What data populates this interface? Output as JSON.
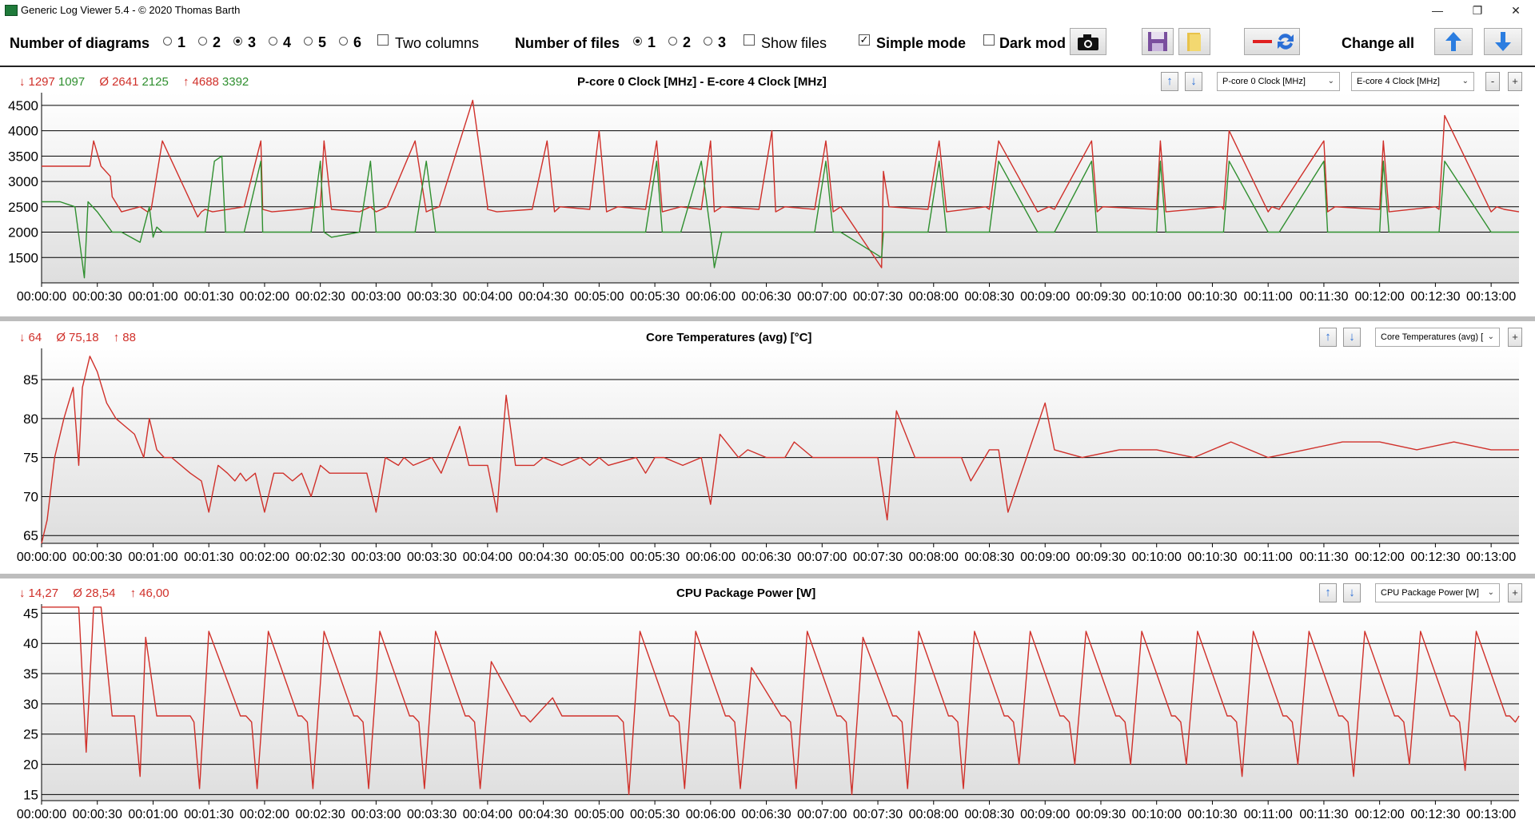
{
  "window": {
    "title": "Generic Log Viewer 5.4 - © 2020 Thomas Barth",
    "minimize": "—",
    "restore": "❐",
    "close": "✕"
  },
  "toolbar": {
    "num_diagrams_label": "Number of diagrams",
    "diagram_options": [
      "1",
      "2",
      "3",
      "4",
      "5",
      "6"
    ],
    "diagram_selected": "3",
    "two_columns": "Two columns",
    "num_files_label": "Number of files",
    "file_options": [
      "1",
      "2",
      "3"
    ],
    "file_selected": "1",
    "show_files": "Show files",
    "simple_mode": "Simple mode",
    "simple_mode_checked": true,
    "dark_mode": "Dark mod",
    "change_all": "Change all",
    "icons": [
      "camera-icon",
      "save-icon",
      "folder-icon",
      "remove-swap-icon",
      "up-arrow-icon",
      "down-arrow-icon"
    ]
  },
  "colors": {
    "red": "#d0302a",
    "green": "#2f8f2f",
    "grid": "#000000"
  },
  "chart_data": [
    {
      "type": "line",
      "title": "P-core 0 Clock [MHz]  -  E-core 4 Clock [MHz]",
      "stats": {
        "min": [
          "1297",
          "1097"
        ],
        "avg": [
          "2641",
          "2125"
        ],
        "max": [
          "4688",
          "3392"
        ]
      },
      "selectors": [
        "P-core 0 Clock [MHz]",
        "E-core 4 Clock [MHz]"
      ],
      "ylim": [
        1000,
        4750
      ],
      "yticks": [
        1500,
        2000,
        2500,
        3000,
        3500,
        4000,
        4500
      ],
      "xticks": [
        "00:00:00",
        "00:00:30",
        "00:01:00",
        "00:01:30",
        "00:02:00",
        "00:02:30",
        "00:03:00",
        "00:03:30",
        "00:04:00",
        "00:04:30",
        "00:05:00",
        "00:05:30",
        "00:06:00",
        "00:06:30",
        "00:07:00",
        "00:07:30",
        "00:08:00",
        "00:08:30",
        "00:09:00",
        "00:09:30",
        "00:10:00",
        "00:10:30",
        "00:11:00",
        "00:11:30",
        "00:12:00",
        "00:12:30",
        "00:13:00"
      ],
      "xmax": 795,
      "series": [
        {
          "color": "#d0302a",
          "x": [
            0,
            26,
            28,
            32,
            37,
            38,
            43,
            53,
            57,
            59,
            65,
            84,
            86,
            88,
            92,
            109,
            118,
            119,
            124,
            139,
            150,
            152,
            156,
            171,
            177,
            180,
            186,
            201,
            207,
            210,
            214,
            232,
            240,
            240,
            245,
            264,
            272,
            276,
            279,
            295,
            300,
            304,
            310,
            325,
            331,
            334,
            344,
            355,
            360,
            362,
            366,
            386,
            393,
            395,
            400,
            416,
            422,
            426,
            430,
            452,
            453,
            456,
            477,
            483,
            487,
            508,
            510,
            515,
            536,
            542,
            545,
            565,
            568,
            571,
            600,
            602,
            605,
            635,
            636,
            639,
            660,
            662,
            666,
            690,
            692,
            696,
            720,
            722,
            725,
            750,
            752,
            755,
            780,
            783,
            787,
            795
          ],
          "y": [
            3300,
            3300,
            3800,
            3300,
            3100,
            2700,
            2400,
            2500,
            2400,
            2450,
            3800,
            2300,
            2400,
            2450,
            2400,
            2500,
            3800,
            2450,
            2400,
            2450,
            2500,
            3800,
            2450,
            2400,
            2500,
            2400,
            2500,
            3800,
            2400,
            2450,
            2500,
            4600,
            2500,
            2450,
            2400,
            2450,
            3800,
            2400,
            2500,
            2450,
            4000,
            2400,
            2500,
            2450,
            3800,
            2400,
            2500,
            2450,
            3800,
            2400,
            2500,
            2450,
            4000,
            2400,
            2500,
            2450,
            3800,
            2400,
            2500,
            1300,
            3200,
            2500,
            2450,
            3800,
            2400,
            2500,
            2450,
            3800,
            2400,
            2500,
            2450,
            3800,
            2400,
            2500,
            2450,
            3800,
            2400,
            2500,
            2450,
            4000,
            2400,
            2500,
            2450,
            3800,
            2400,
            2500,
            2450,
            3800,
            2400,
            2500,
            2450,
            4300,
            2400,
            2500,
            2450,
            2400
          ]
        },
        {
          "color": "#2f8f2f",
          "x": [
            0,
            10,
            18,
            23,
            25,
            30,
            38,
            43,
            53,
            58,
            60,
            62,
            65,
            84,
            88,
            93,
            97,
            99,
            109,
            118,
            119,
            124,
            139,
            145,
            150,
            152,
            156,
            171,
            177,
            180,
            186,
            201,
            207,
            212,
            232,
            240,
            244,
            264,
            269,
            276,
            279,
            295,
            300,
            304,
            310,
            325,
            331,
            334,
            344,
            355,
            360,
            362,
            366,
            386,
            393,
            395,
            400,
            416,
            422,
            426,
            430,
            452,
            453,
            456,
            477,
            483,
            487,
            508,
            510,
            515,
            536,
            542,
            545,
            565,
            568,
            571,
            600,
            602,
            605,
            635,
            636,
            639,
            660,
            662,
            666,
            690,
            692,
            696,
            720,
            722,
            725,
            750,
            752,
            755,
            780,
            783,
            787,
            795
          ],
          "y": [
            2600,
            2600,
            2500,
            1100,
            2600,
            2400,
            2000,
            2000,
            1800,
            2500,
            1900,
            2100,
            2000,
            2000,
            2000,
            3400,
            3500,
            2000,
            2000,
            3400,
            2000,
            2000,
            2000,
            2000,
            3400,
            2000,
            1900,
            2000,
            3400,
            2000,
            2000,
            2000,
            3400,
            2000,
            2000,
            2000,
            2000,
            2000,
            2000,
            2000,
            2000,
            2000,
            2000,
            2000,
            2000,
            2000,
            3400,
            2000,
            2000,
            3400,
            2000,
            1300,
            2000,
            2000,
            2000,
            2000,
            2000,
            2000,
            3400,
            2000,
            2000,
            1500,
            2000,
            2000,
            2000,
            3400,
            2000,
            2000,
            2000,
            3400,
            2000,
            2000,
            2000,
            3400,
            2000,
            2000,
            2000,
            3400,
            2000,
            2000,
            2000,
            3400,
            2000,
            2000,
            2000,
            3400,
            2000,
            2000,
            2000,
            3400,
            2000,
            2000,
            2000,
            3400,
            2000,
            2000,
            2000,
            2000
          ]
        }
      ]
    },
    {
      "type": "line",
      "title": "Core Temperatures (avg) [°C]",
      "stats": {
        "min": [
          "64"
        ],
        "avg": [
          "75,18"
        ],
        "max": [
          "88"
        ]
      },
      "selectors": [
        "Core Temperatures (avg) ["
      ],
      "ylim": [
        64,
        89
      ],
      "yticks": [
        65,
        70,
        75,
        80,
        85
      ],
      "xticks": [
        "00:00:00",
        "00:00:30",
        "00:01:00",
        "00:01:30",
        "00:02:00",
        "00:02:30",
        "00:03:00",
        "00:03:30",
        "00:04:00",
        "00:04:30",
        "00:05:00",
        "00:05:30",
        "00:06:00",
        "00:06:30",
        "00:07:00",
        "00:07:30",
        "00:08:00",
        "00:08:30",
        "00:09:00",
        "00:09:30",
        "00:10:00",
        "00:10:30",
        "00:11:00",
        "00:11:30",
        "00:12:00",
        "00:12:30",
        "00:13:00"
      ],
      "xmax": 795,
      "series": [
        {
          "color": "#d0302a",
          "x": [
            0,
            3,
            7,
            12,
            17,
            20,
            22,
            26,
            30,
            35,
            40,
            45,
            50,
            55,
            58,
            62,
            66,
            70,
            80,
            86,
            90,
            95,
            100,
            104,
            107,
            110,
            115,
            120,
            125,
            130,
            135,
            140,
            145,
            150,
            155,
            160,
            170,
            175,
            180,
            185,
            192,
            195,
            200,
            210,
            215,
            225,
            230,
            235,
            240,
            245,
            250,
            255,
            265,
            270,
            280,
            290,
            295,
            300,
            305,
            320,
            325,
            330,
            335,
            345,
            355,
            360,
            365,
            375,
            380,
            390,
            400,
            405,
            415,
            420,
            425,
            450,
            455,
            460,
            470,
            490,
            495,
            500,
            510,
            515,
            520,
            540,
            545,
            560,
            580,
            600,
            620,
            640,
            660,
            680,
            700,
            720,
            740,
            760,
            780,
            795
          ],
          "y": [
            64,
            67,
            75,
            80,
            84,
            74,
            84,
            88,
            86,
            82,
            80,
            79,
            78,
            75,
            80,
            76,
            75,
            75,
            73,
            72,
            68,
            74,
            73,
            72,
            73,
            72,
            73,
            68,
            73,
            73,
            72,
            73,
            70,
            74,
            73,
            73,
            73,
            73,
            68,
            75,
            74,
            75,
            74,
            75,
            73,
            79,
            74,
            74,
            74,
            68,
            83,
            74,
            74,
            75,
            74,
            75,
            74,
            75,
            74,
            75,
            73,
            75,
            75,
            74,
            75,
            69,
            78,
            75,
            76,
            75,
            75,
            77,
            75,
            75,
            75,
            75,
            67,
            81,
            75,
            75,
            75,
            72,
            76,
            76,
            68,
            82,
            76,
            75,
            76,
            76,
            75,
            77,
            75,
            76,
            77,
            77,
            76,
            77,
            76,
            76
          ]
        }
      ]
    },
    {
      "type": "line",
      "title": "CPU Package Power [W]",
      "stats": {
        "min": [
          "14,27"
        ],
        "avg": [
          "28,54"
        ],
        "max": [
          "46,00"
        ]
      },
      "selectors": [
        "CPU Package Power [W]"
      ],
      "ylim": [
        14,
        46.5
      ],
      "yticks": [
        15,
        20,
        25,
        30,
        35,
        40,
        45
      ],
      "xticks": [
        "00:00:00",
        "00:00:30",
        "00:01:00",
        "00:01:30",
        "00:02:00",
        "00:02:30",
        "00:03:00",
        "00:03:30",
        "00:04:00",
        "00:04:30",
        "00:05:00",
        "00:05:30",
        "00:06:00",
        "00:06:30",
        "00:07:00",
        "00:07:30",
        "00:08:00",
        "00:08:30",
        "00:09:00",
        "00:09:30",
        "00:10:00",
        "00:10:30",
        "00:11:00",
        "00:11:30",
        "00:12:00",
        "00:12:30",
        "00:13:00"
      ],
      "xmax": 795,
      "series": [
        {
          "color": "#d0302a",
          "x": [
            0,
            15,
            20,
            24,
            28,
            32,
            38,
            48,
            50,
            53,
            56,
            62,
            78,
            80,
            82,
            85,
            90,
            107,
            110,
            113,
            116,
            122,
            138,
            140,
            143,
            146,
            152,
            168,
            170,
            173,
            176,
            182,
            198,
            200,
            203,
            206,
            212,
            228,
            230,
            233,
            236,
            242,
            258,
            260,
            263,
            266,
            275,
            280,
            290,
            300,
            308,
            310,
            313,
            316,
            322,
            338,
            340,
            343,
            346,
            352,
            368,
            370,
            373,
            376,
            382,
            398,
            400,
            403,
            406,
            412,
            428,
            430,
            433,
            436,
            442,
            458,
            460,
            463,
            466,
            472,
            488,
            490,
            493,
            496,
            502,
            518,
            520,
            523,
            526,
            532,
            548,
            550,
            553,
            556,
            562,
            578,
            580,
            583,
            586,
            592,
            608,
            610,
            613,
            616,
            622,
            638,
            640,
            643,
            646,
            652,
            668,
            670,
            673,
            676,
            682,
            698,
            700,
            703,
            706,
            712,
            728,
            730,
            733,
            736,
            742,
            758,
            760,
            763,
            766,
            772,
            788,
            790,
            793,
            795
          ],
          "y": [
            46,
            46,
            46,
            22,
            46,
            46,
            28,
            28,
            28,
            18,
            41,
            28,
            28,
            28,
            27,
            16,
            42,
            28,
            28,
            27,
            16,
            42,
            28,
            28,
            27,
            16,
            42,
            28,
            28,
            27,
            16,
            42,
            28,
            28,
            27,
            16,
            42,
            28,
            28,
            27,
            16,
            37,
            28,
            28,
            27,
            28,
            31,
            28,
            28,
            28,
            28,
            28,
            27,
            15,
            42,
            28,
            28,
            27,
            16,
            42,
            28,
            28,
            27,
            16,
            36,
            28,
            28,
            27,
            16,
            42,
            28,
            28,
            27,
            15,
            41,
            28,
            28,
            27,
            16,
            42,
            28,
            28,
            27,
            16,
            42,
            28,
            28,
            27,
            20,
            42,
            28,
            28,
            27,
            20,
            42,
            28,
            28,
            27,
            20,
            42,
            28,
            28,
            27,
            20,
            42,
            28,
            28,
            27,
            18,
            42,
            28,
            28,
            27,
            20,
            42,
            28,
            28,
            27,
            18,
            42,
            28,
            28,
            27,
            20,
            42,
            28,
            28,
            27,
            19,
            42,
            28,
            28,
            27,
            28
          ]
        }
      ]
    }
  ]
}
